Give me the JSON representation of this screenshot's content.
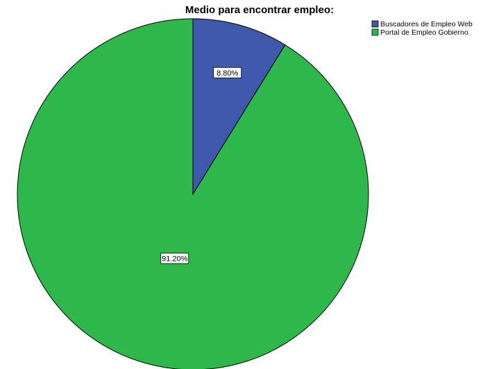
{
  "chart_data": {
    "type": "pie",
    "title": "Medio para encontrar empleo:",
    "legend_position": "top-right",
    "slices": [
      {
        "label": "Buscadores de Empleo Web",
        "value": 8.8,
        "display": "8.80%",
        "color": "#3e58ac"
      },
      {
        "label": "Portal de Empleo Gobierno",
        "value": 91.2,
        "display": "91.20%",
        "color": "#2eb84b"
      }
    ],
    "start_angle": "12 o'clock",
    "direction": "clockwise"
  }
}
